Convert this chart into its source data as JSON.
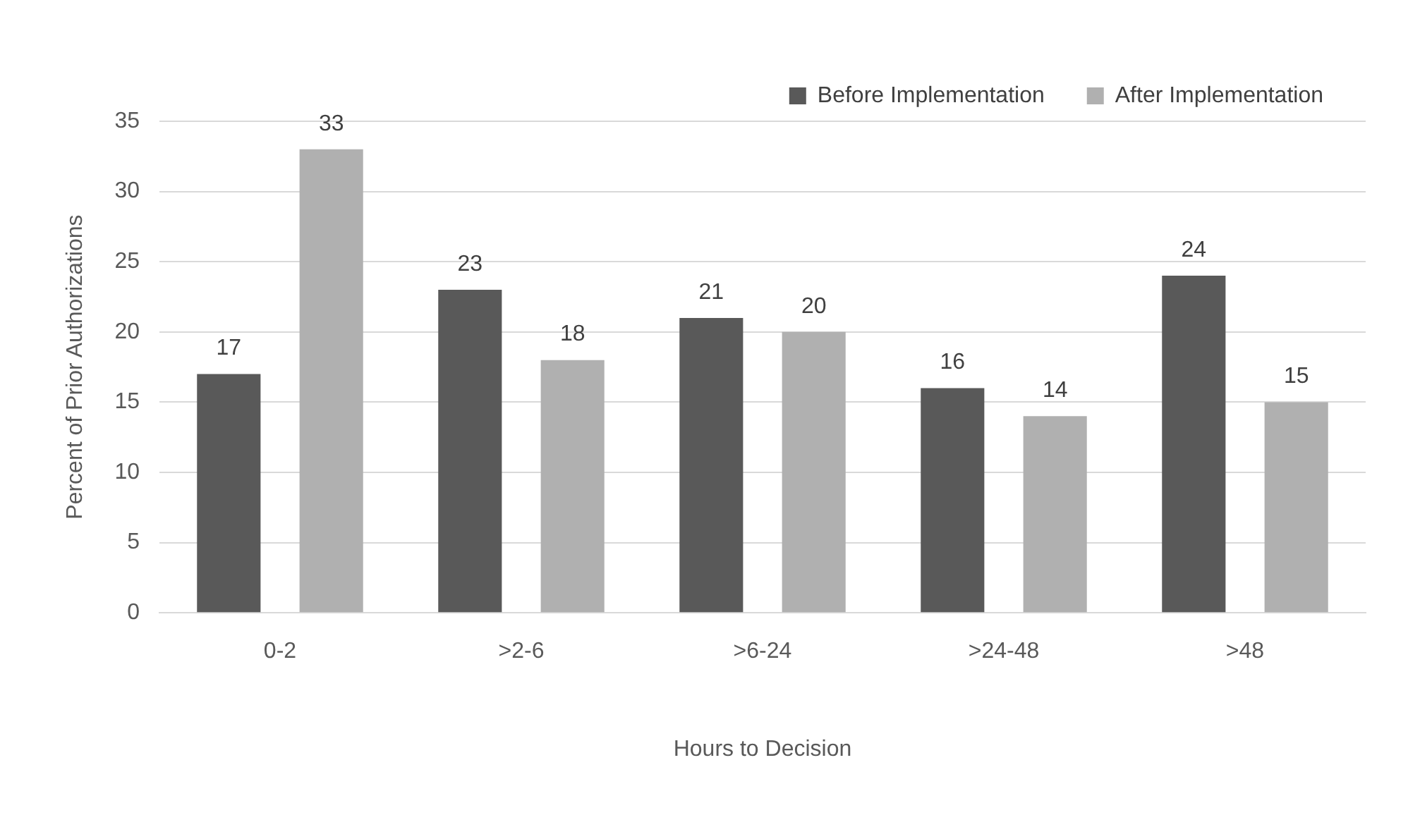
{
  "chart_data": {
    "type": "bar",
    "xlabel": "Hours to Decision",
    "ylabel": "Percent of Prior Authorizations",
    "categories": [
      "0-2",
      ">2-6",
      ">6-24",
      ">24-48",
      ">48"
    ],
    "series": [
      {
        "name": "Before Implementation",
        "color": "#595959",
        "values": [
          17,
          23,
          21,
          16,
          24
        ]
      },
      {
        "name": "After Implementation",
        "color": "#b0b0b0",
        "values": [
          33,
          18,
          20,
          14,
          15
        ]
      }
    ],
    "ylim": [
      0,
      35
    ],
    "yticks": [
      0,
      5,
      10,
      15,
      20,
      25,
      30,
      35
    ],
    "grid": "y",
    "legend": "top right",
    "data_labels": true
  }
}
